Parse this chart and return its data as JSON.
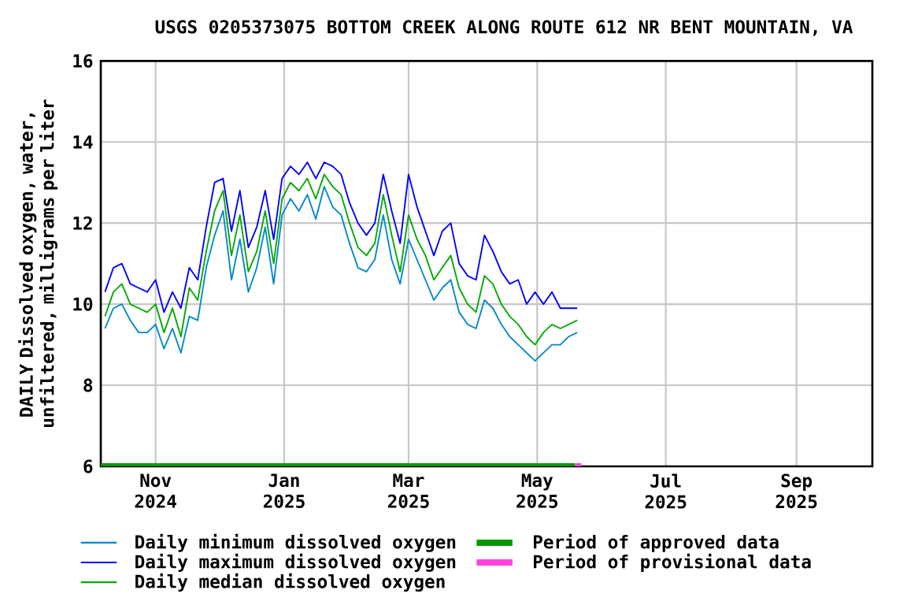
{
  "chart_data": {
    "type": "line",
    "title": "USGS 0205373075 BOTTOM CREEK ALONG ROUTE 612 NR BENT MOUNTAIN, VA",
    "ylabel": "DAILY Dissolved oxygen, water, unfiltered, milligrams per liter",
    "x": [
      "2024-10-08",
      "2024-10-12",
      "2024-10-16",
      "2024-10-20",
      "2024-10-24",
      "2024-10-28",
      "2024-11-01",
      "2024-11-05",
      "2024-11-09",
      "2024-11-13",
      "2024-11-17",
      "2024-11-21",
      "2024-11-25",
      "2024-11-29",
      "2024-12-03",
      "2024-12-07",
      "2024-12-11",
      "2024-12-15",
      "2024-12-19",
      "2024-12-23",
      "2024-12-27",
      "2024-12-31",
      "2025-01-04",
      "2025-01-08",
      "2025-01-12",
      "2025-01-16",
      "2025-01-20",
      "2025-01-24",
      "2025-01-28",
      "2025-02-01",
      "2025-02-05",
      "2025-02-09",
      "2025-02-13",
      "2025-02-17",
      "2025-02-21",
      "2025-02-25",
      "2025-03-01",
      "2025-03-05",
      "2025-03-09",
      "2025-03-13",
      "2025-03-17",
      "2025-03-21",
      "2025-03-25",
      "2025-03-29",
      "2025-04-02",
      "2025-04-06",
      "2025-04-10",
      "2025-04-14",
      "2025-04-18",
      "2025-04-22",
      "2025-04-26",
      "2025-04-30",
      "2025-05-04",
      "2025-05-08",
      "2025-05-12",
      "2025-05-16",
      "2025-05-20"
    ],
    "series": [
      {
        "name": "Daily minimum dissolved oxygen",
        "color": "#0088cc",
        "values": [
          9.4,
          9.9,
          10.0,
          9.6,
          9.3,
          9.3,
          9.5,
          8.9,
          9.4,
          8.8,
          9.7,
          9.6,
          10.9,
          11.7,
          12.3,
          10.6,
          11.6,
          10.3,
          10.9,
          11.9,
          10.5,
          12.2,
          12.6,
          12.3,
          12.7,
          12.1,
          12.9,
          12.4,
          12.2,
          11.5,
          10.9,
          10.8,
          11.1,
          12.2,
          11.1,
          10.5,
          11.6,
          11.1,
          10.6,
          10.1,
          10.4,
          10.6,
          9.8,
          9.5,
          9.4,
          10.1,
          9.9,
          9.5,
          9.2,
          9.0,
          8.8,
          8.6,
          8.8,
          9.0,
          9.0,
          9.2,
          9.3
        ]
      },
      {
        "name": "Daily maximum dissolved oxygen",
        "color": "#0000ff",
        "values": [
          10.3,
          10.9,
          11.0,
          10.5,
          10.4,
          10.3,
          10.6,
          9.8,
          10.3,
          9.9,
          10.9,
          10.6,
          11.9,
          13.0,
          13.1,
          11.8,
          12.8,
          11.4,
          11.9,
          12.8,
          11.6,
          13.1,
          13.4,
          13.2,
          13.5,
          13.1,
          13.5,
          13.4,
          13.2,
          12.5,
          12.0,
          11.7,
          12.0,
          13.2,
          12.3,
          11.5,
          13.2,
          12.4,
          11.8,
          11.2,
          11.8,
          12.0,
          11.0,
          10.7,
          10.6,
          11.7,
          11.3,
          10.8,
          10.5,
          10.6,
          10.0,
          10.3,
          10.0,
          10.3,
          9.9,
          9.9,
          9.9
        ]
      },
      {
        "name": "Daily median dissolved oxygen",
        "color": "#00aa00",
        "values": [
          9.7,
          10.3,
          10.5,
          10.0,
          9.9,
          9.8,
          10.0,
          9.3,
          9.9,
          9.2,
          10.4,
          10.1,
          11.3,
          12.3,
          12.8,
          11.2,
          12.2,
          10.8,
          11.3,
          12.3,
          11.0,
          12.6,
          13.0,
          12.8,
          13.1,
          12.6,
          13.2,
          12.9,
          12.7,
          12.0,
          11.4,
          11.2,
          11.5,
          12.7,
          11.7,
          10.8,
          12.2,
          11.6,
          11.2,
          10.6,
          10.9,
          11.2,
          10.4,
          10.0,
          9.8,
          10.7,
          10.5,
          10.0,
          9.7,
          9.5,
          9.2,
          9.0,
          9.3,
          9.5,
          9.4,
          9.5,
          9.6
        ]
      },
      {
        "name": "Period of approved data",
        "color": "#009900",
        "x": [
          "2024-10-06",
          "2025-05-19"
        ],
        "values": [
          6,
          6
        ]
      },
      {
        "name": "Period of provisional data",
        "color": "#ff44dd",
        "x": [
          "2025-05-19",
          "2025-05-22"
        ],
        "values": [
          6,
          6
        ]
      }
    ],
    "xlim": [
      "2024-10-06",
      "2025-10-07"
    ],
    "xticks": [
      {
        "value": "2024-11-01",
        "label": "Nov 2024"
      },
      {
        "value": "2025-01-01",
        "label": "Jan 2025"
      },
      {
        "value": "2025-03-01",
        "label": "Mar 2025"
      },
      {
        "value": "2025-05-01",
        "label": "May 2025"
      },
      {
        "value": "2025-07-01",
        "label": "Jul 2025"
      },
      {
        "value": "2025-09-01",
        "label": "Sep 2025"
      }
    ],
    "ylim": [
      6,
      16
    ],
    "yticks": [
      6,
      8,
      10,
      12,
      14,
      16
    ],
    "grid": true,
    "legend": "bottom",
    "line_style": "solid",
    "marker": "none"
  }
}
